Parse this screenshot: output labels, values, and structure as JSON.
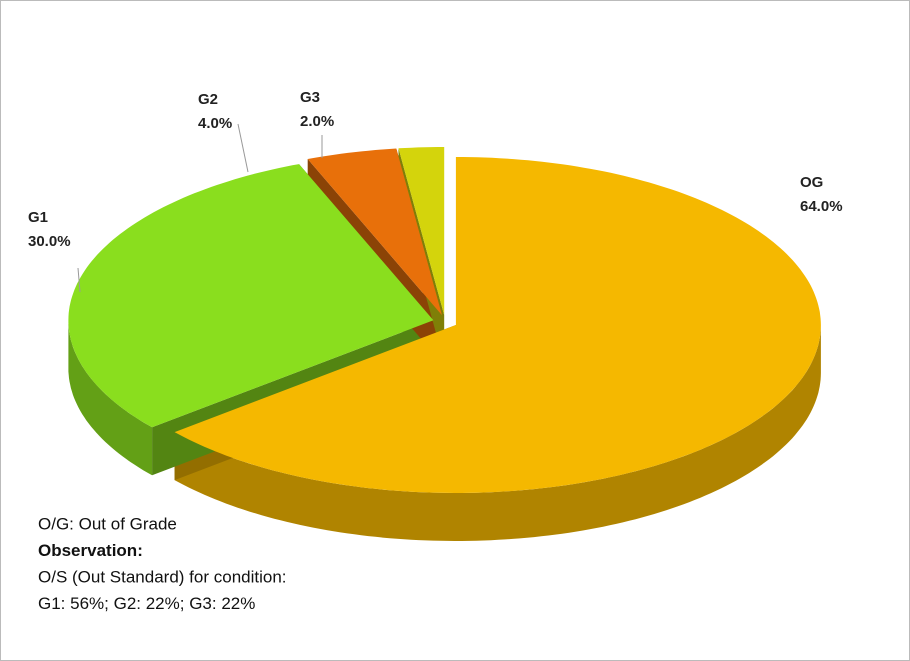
{
  "chart_data": {
    "type": "pie",
    "categories": [
      "OG",
      "G1",
      "G2",
      "G3"
    ],
    "values": [
      64,
      30,
      4,
      2
    ],
    "value_labels": [
      "64.0%",
      "30.0%",
      "4.0%",
      "2.0%"
    ],
    "colors": [
      "#f5b800",
      "#8ade1e",
      "#e8700a",
      "#d4d40c"
    ],
    "annotations": [
      "O/G: Out of Grade",
      "Observation:",
      "O/S (Out Standard) for condition:",
      "G1: 56%; G2: 22%; G3: 22%"
    ]
  }
}
